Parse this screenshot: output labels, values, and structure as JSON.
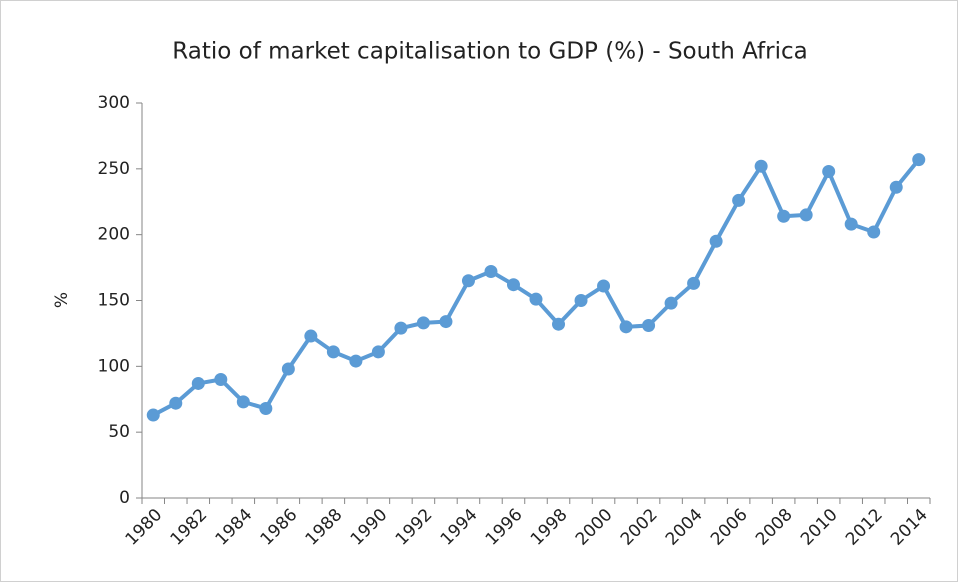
{
  "chart_data": {
    "type": "line",
    "title": "Ratio of market capitalisation to GDP (%) - South Africa",
    "y_label": "%",
    "categories": [
      "1980",
      null,
      "1982",
      null,
      "1984",
      null,
      "1986",
      null,
      "1988",
      null,
      "1990",
      null,
      "1992",
      null,
      "1994",
      null,
      "1996",
      null,
      "1998",
      null,
      "2000",
      null,
      "2002",
      null,
      "2004",
      null,
      "2006",
      null,
      "2008",
      null,
      "2010",
      null,
      "2012",
      null,
      "2014"
    ],
    "series": [
      {
        "name": "Ratio of market capitalisation to GDP",
        "color": "#5b9bd5",
        "values": [
          63,
          72,
          87,
          90,
          73,
          68,
          98,
          123,
          111,
          104,
          111,
          129,
          133,
          134,
          165,
          172,
          162,
          151,
          132,
          150,
          161,
          130,
          131,
          148,
          163,
          195,
          226,
          252,
          214,
          215,
          248,
          208,
          202,
          236,
          257
        ]
      }
    ],
    "ylim": [
      0,
      300
    ],
    "yticks": [
      0,
      50,
      100,
      150,
      200,
      250,
      300
    ],
    "grid": false,
    "markers": true
  }
}
